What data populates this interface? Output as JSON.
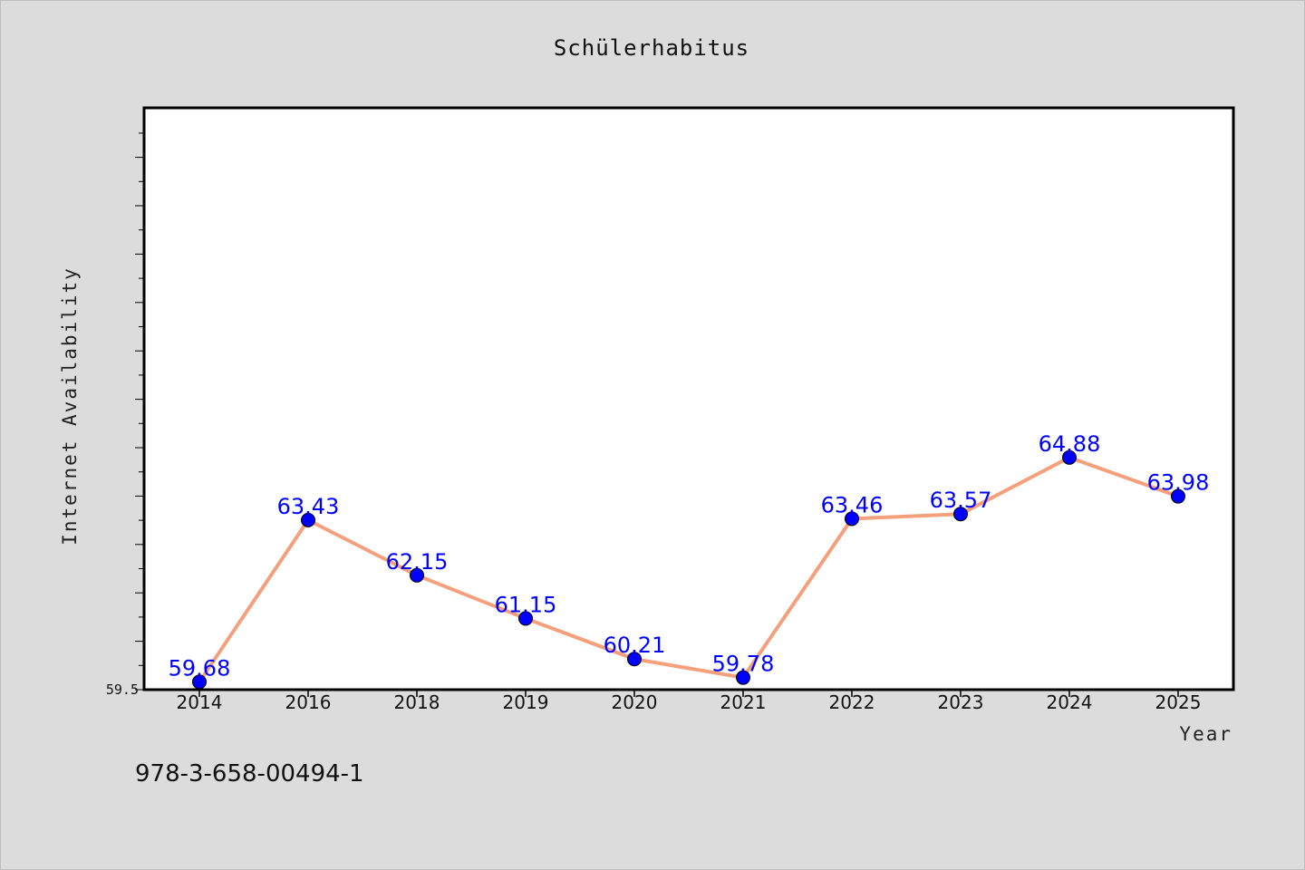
{
  "chart_data": {
    "type": "line",
    "title": "Schülerhabitus",
    "xlabel": "Year",
    "ylabel": "Internet Availability",
    "categories": [
      "2014",
      "2016",
      "2018",
      "2019",
      "2020",
      "2021",
      "2022",
      "2023",
      "2024",
      "2025"
    ],
    "series": [
      {
        "values": [
          59.68,
          63.43,
          62.15,
          61.15,
          60.21,
          59.78,
          63.46,
          63.57,
          64.88,
          63.98
        ],
        "labels": [
          "59.68",
          "63.43",
          "62.15",
          "61.15",
          "60.21",
          "59.78",
          "63.46",
          "63.57",
          "64.88",
          "63.98"
        ]
      }
    ],
    "ylim": [
      59.5,
      65.5
    ],
    "yticks": [
      "59.5"
    ],
    "grid": false,
    "legend": "none",
    "colors": {
      "line": "#f4a07c",
      "marker": "#0000ff",
      "label": "#0000ff",
      "plot_bg": "#ffffff",
      "page_bg": "#dcdcdc"
    }
  },
  "footer": {
    "isbn": "978-3-658-00494-1"
  }
}
